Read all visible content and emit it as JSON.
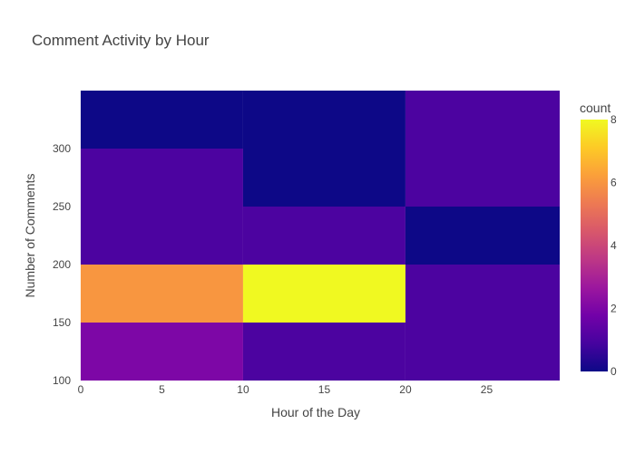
{
  "chart_data": {
    "type": "heatmap",
    "title": "Comment Activity by Hour",
    "xlabel": "Hour of the Day",
    "ylabel": "Number of Comments",
    "x_bin_edges": [
      0,
      10,
      20,
      30
    ],
    "y_bin_edges": [
      100,
      150,
      200,
      250,
      300,
      350
    ],
    "xlim": [
      -0.5,
      29.5
    ],
    "ylim": [
      100,
      350
    ],
    "x_ticks": [
      0,
      5,
      10,
      15,
      20,
      25
    ],
    "y_ticks": [
      100,
      150,
      200,
      250,
      300
    ],
    "counts": [
      [
        2,
        1,
        1
      ],
      [
        6,
        8,
        1
      ],
      [
        1,
        1,
        0
      ],
      [
        1,
        0,
        1
      ],
      [
        0,
        0,
        1
      ]
    ],
    "colorbar": {
      "title": "count",
      "range": [
        0,
        8
      ],
      "ticks": [
        0,
        2,
        4,
        6,
        8
      ],
      "colorscale": [
        "#0d0887",
        "#46039f",
        "#7201a8",
        "#9c179e",
        "#bd3786",
        "#d8576b",
        "#ed7953",
        "#fb9f3a",
        "#fdca26",
        "#f0f921"
      ]
    },
    "grid": false
  }
}
